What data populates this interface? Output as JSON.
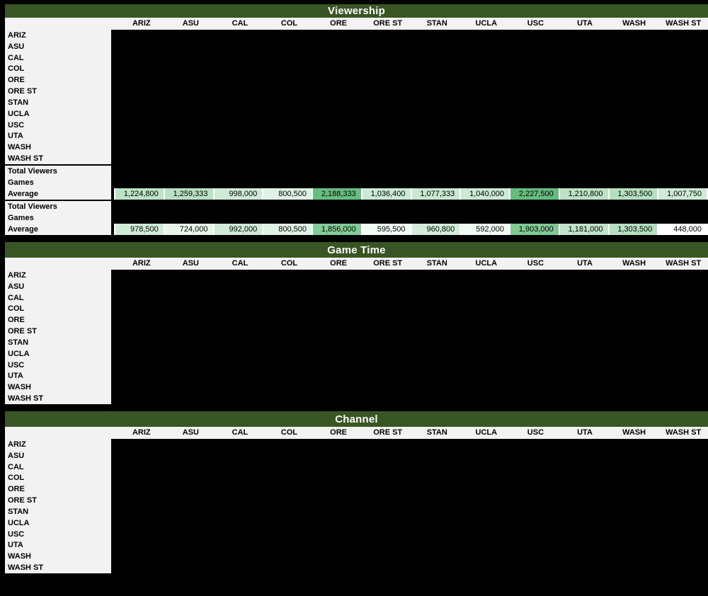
{
  "colors": {
    "title_bar_green": "#375623",
    "title_text": "#FFFFFF",
    "header_bg": "#F2F2F2",
    "data_bg": "#000000",
    "scale_low": "#FFFFFF",
    "scale_high": "#63BE7B"
  },
  "columns": [
    "ARIZ",
    "ASU",
    "CAL",
    "COL",
    "ORE",
    "ORE ST",
    "STAN",
    "UCLA",
    "USC",
    "UTA",
    "WASH",
    "WASH ST"
  ],
  "row_labels": [
    "ARIZ",
    "ASU",
    "CAL",
    "COL",
    "ORE",
    "ORE ST",
    "STAN",
    "UCLA",
    "USC",
    "UTA",
    "WASH",
    "WASH ST"
  ],
  "sections": [
    {
      "title": "Viewership",
      "color_scale": {
        "min": 448000,
        "max": 2227500
      },
      "summary_blocks": [
        {
          "row_labels": [
            "Total Viewers",
            "Games",
            "Average"
          ],
          "average_values": [
            "1,224,800",
            "1,259,333",
            "998,000",
            "800,500",
            "2,188,333",
            "1,036,400",
            "1,077,333",
            "1,040,000",
            "2,227,500",
            "1,210,800",
            "1,303,500",
            "1,007,750"
          ]
        },
        {
          "row_labels": [
            "Total Viewers",
            "Games",
            "Average"
          ],
          "average_values": [
            "978,500",
            "724,000",
            "992,000",
            "800,500",
            "1,856,000",
            "595,500",
            "960,800",
            "592,000",
            "1,903,000",
            "1,181,000",
            "1,303,500",
            "448,000"
          ]
        }
      ]
    },
    {
      "title": "Game Time"
    },
    {
      "title": "Channel"
    }
  ]
}
